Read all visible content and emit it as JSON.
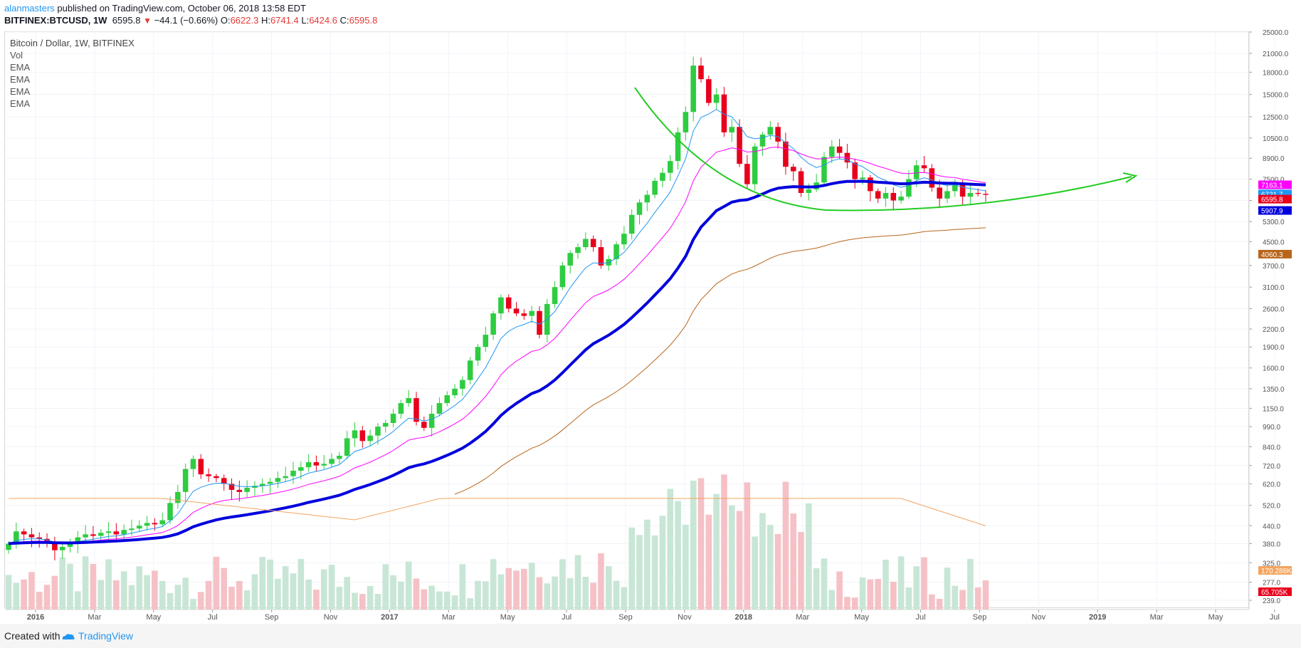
{
  "header": {
    "user": "alanmasters",
    "published": " published on TradingView.com, October 06, 2018 13:58 EDT",
    "symbol": "BITFINEX:BTCUSD, 1W",
    "last": "6595.8",
    "change": "−44.1 (−0.66%)",
    "o_label": "O:",
    "o": "6622.3",
    "h_label": "H:",
    "h": "6741.4",
    "l_label": "L:",
    "l": "6424.6",
    "c_label": "C:",
    "c": "6595.8"
  },
  "legend": {
    "title": "Bitcoin / Dollar, 1W, BITFINEX",
    "items": [
      "Vol",
      "EMA",
      "EMA",
      "EMA",
      "EMA"
    ]
  },
  "footer": {
    "created": "Created with",
    "brand": "TradingView"
  },
  "colors": {
    "up": "#2ecc40",
    "down": "#e8001c",
    "ema_fast": "#2196f3",
    "ema_mid": "#ff00ff",
    "ema_slow": "#0000dd",
    "ema_long": "#b8651b",
    "vol_up": "#c8e6d6",
    "vol_down": "#f5c1c6",
    "vol_ma": "#f4a460",
    "arc": "#22cc22"
  },
  "chart_data": {
    "type": "candlestick",
    "title": "Bitcoin / Dollar, 1W, BITFINEX",
    "y_scale": "log",
    "ylim": [
      260,
      27000
    ],
    "y_ticks": [
      "25000.0",
      "21000.0",
      "18000.0",
      "15000.0",
      "12500.0",
      "10500.0",
      "8900.0",
      "7500.0",
      "6300.0",
      "5300.0",
      "4500.0",
      "3700.0",
      "3100.0",
      "2600.0",
      "2200.0",
      "1900.0",
      "1600.0",
      "1350.0",
      "1150.0",
      "990.0",
      "840.0",
      "720.0",
      "620.0",
      "520.0",
      "440.0",
      "380.0",
      "325.0",
      "277.0",
      "239.0"
    ],
    "x_ticks": [
      "2016",
      "Mar",
      "May",
      "Jul",
      "Sep",
      "Nov",
      "2017",
      "Mar",
      "May",
      "Jul",
      "Sep",
      "Nov",
      "2018",
      "Mar",
      "May",
      "Jul",
      "Sep",
      "Nov",
      "2019",
      "Mar",
      "May",
      "Jul"
    ],
    "price_labels": [
      {
        "series": "EMA",
        "value": "7163.1",
        "color": "#ff00ff"
      },
      {
        "series": "EMA",
        "value": "6721.7",
        "color": "#2196f3"
      },
      {
        "series": "Last",
        "value": "6595.8",
        "color": "#e8001c"
      },
      {
        "series": "EMA",
        "value": "5907.9",
        "color": "#0000dd"
      },
      {
        "series": "EMA",
        "value": "4060.3",
        "color": "#b8651b"
      },
      {
        "series": "Vol MA",
        "value": "170.288K",
        "color": "#f4a460"
      },
      {
        "series": "Vol",
        "value": "65.705K",
        "color": "#e8001c"
      }
    ],
    "closes": [
      380,
      420,
      410,
      400,
      395,
      380,
      360,
      370,
      380,
      400,
      410,
      405,
      415,
      420,
      410,
      425,
      430,
      440,
      450,
      445,
      460,
      530,
      580,
      700,
      760,
      670,
      660,
      650,
      620,
      590,
      580,
      600,
      610,
      620,
      630,
      650,
      660,
      690,
      710,
      740,
      720,
      730,
      760,
      780,
      900,
      960,
      880,
      920,
      990,
      1020,
      1100,
      1200,
      1250,
      1030,
      980,
      1100,
      1200,
      1280,
      1350,
      1450,
      1700,
      1900,
      2100,
      2500,
      2850,
      2600,
      2500,
      2450,
      2550,
      2100,
      2700,
      3100,
      3700,
      4100,
      4300,
      4600,
      4300,
      3700,
      3900,
      4400,
      4800,
      5600,
      6200,
      6600,
      7400,
      7900,
      8700,
      11000,
      13000,
      19000,
      17000,
      14000,
      15000,
      11000,
      11500,
      8500,
      7200,
      9800,
      10800,
      11500,
      10200,
      8300,
      8000,
      6700,
      6900,
      7300,
      9000,
      9800,
      9300,
      8600,
      7500,
      7600,
      6800,
      6400,
      6700,
      6300,
      6500,
      7500,
      8400,
      8200,
      7000,
      6400,
      6800,
      7300,
      6500,
      6700,
      6650,
      6595.8
    ],
    "ema_values_read": {
      "ema_fast_end": 6721.7,
      "ema_mid_end": 7163.1,
      "ema_slow_end": 5907.9,
      "ema_long_end": 4060.3
    }
  }
}
